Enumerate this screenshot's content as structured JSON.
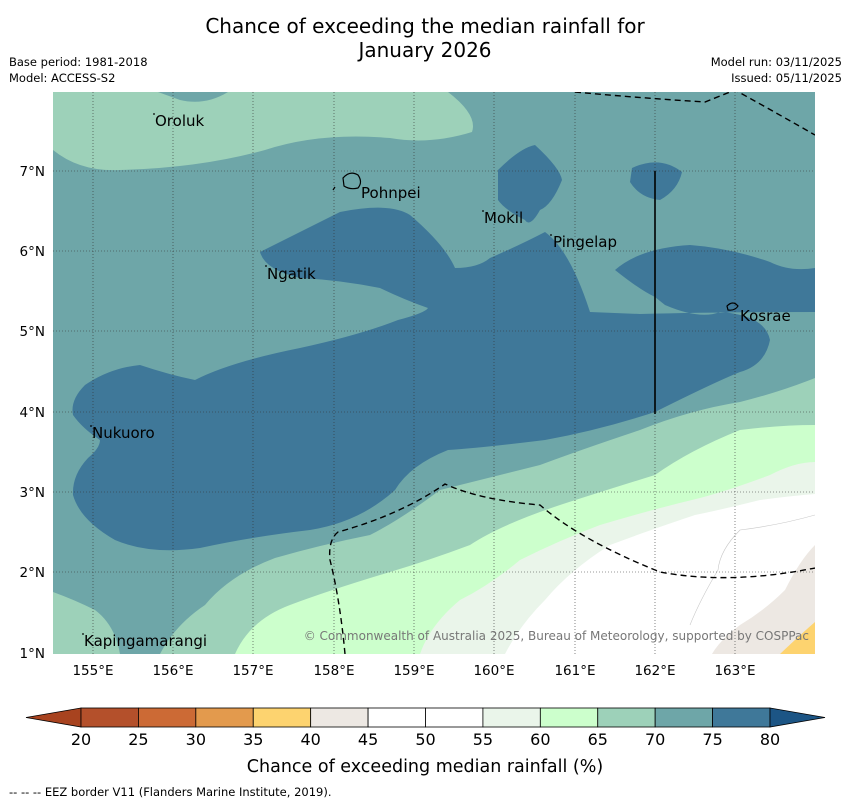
{
  "header": {
    "title_line1": "Chance of exceeding the median rainfall for",
    "title_line2": "January 2026",
    "base_period": "Base period: 1981-2018",
    "model": "Model: ACCESS-S2",
    "model_run": "Model run: 03/11/2025",
    "issued": "Issued: 05/11/2025"
  },
  "map": {
    "lat_labels": [
      "7°N",
      "6°N",
      "5°N",
      "4°N",
      "3°N",
      "2°N",
      "1°N"
    ],
    "lon_labels": [
      "155°E",
      "156°E",
      "157°E",
      "158°E",
      "159°E",
      "160°E",
      "161°E",
      "162°E",
      "163°E"
    ],
    "places": [
      "Oroluk",
      "Pohnpei",
      "Mokil",
      "Pingelap",
      "Ngatik",
      "Kosrae",
      "Nukuoro",
      "Kapingamarangi"
    ],
    "copyright": "© Commonwealth of Australia 2025, Bureau of Meteorology, supported by COSPPac"
  },
  "colorbar": {
    "ticks": [
      "20",
      "25",
      "30",
      "35",
      "40",
      "45",
      "50",
      "55",
      "60",
      "65",
      "70",
      "75",
      "80"
    ],
    "colors": [
      "#a8431f",
      "#b4502b",
      "#cc6a35",
      "#e39a4d",
      "#fdd36f",
      "#ede8e3",
      "#ffffff",
      "#ffffff",
      "#eaf5ea",
      "#ccffcc",
      "#9dd1b9",
      "#6ea6a8",
      "#3f7899",
      "#1c5585"
    ],
    "label": "Chance of exceeding median rainfall (%)"
  },
  "footnote": "--  --  -- EEZ border V11 (Flanders Marine Institute, 2019)."
}
